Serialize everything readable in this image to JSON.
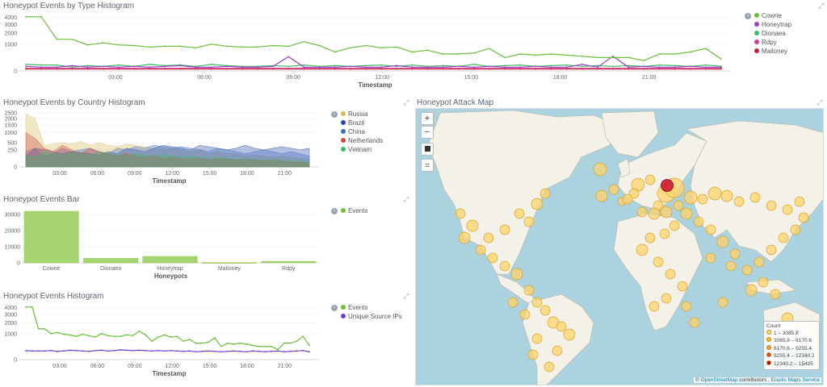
{
  "panels": {
    "type_hist": {
      "title": "Honeypot Events by Type Histogram",
      "xlabel": "Timestamp"
    },
    "country_hist": {
      "title": "Honeypot Events by Country Histogram",
      "xlabel": "Timestamp"
    },
    "bar": {
      "title": "Honeypot Events Bar",
      "xlabel": "Honeypots"
    },
    "events_hist": {
      "title": "Honeypot Events Histogram",
      "xlabel": "Timestamp"
    },
    "map": {
      "title": "Honeypot Attack Map"
    }
  },
  "icons": {
    "expand": "expand-icon",
    "toggle": "chevron-right-icon"
  },
  "chart_data": [
    {
      "id": "type_hist",
      "type": "line",
      "title": "Honeypot Events by Type Histogram",
      "xlabel": "Timestamp",
      "x_ticks": [
        "03:00",
        "06:00",
        "09:00",
        "12:00",
        "15:00",
        "18:00",
        "21:00"
      ],
      "y_ticks": [
        "0",
        "1000",
        "2000",
        "3000",
        "4000"
      ],
      "y_scale": "sqrt",
      "ylim": [
        0,
        4200
      ],
      "series": [
        {
          "name": "Cowrie",
          "color": "#6bbf3a",
          "values": [
            4100,
            4100,
            1400,
            1400,
            950,
            1100,
            950,
            900,
            800,
            850,
            850,
            750,
            1000,
            850,
            800,
            800,
            900,
            850,
            1200,
            900,
            500,
            750,
            900,
            750,
            800,
            500,
            600,
            400,
            400,
            450,
            700,
            250,
            400,
            350,
            400,
            350,
            300,
            250,
            250,
            250,
            150,
            400,
            400,
            500,
            700,
            200
          ]
        },
        {
          "name": "Honeytrap",
          "color": "#9b3fc7",
          "values": [
            30,
            20,
            20,
            40,
            20,
            30,
            20,
            30,
            20,
            30,
            40,
            20,
            20,
            30,
            20,
            20,
            30,
            280,
            20,
            20,
            20,
            30,
            20,
            20,
            40,
            20,
            20,
            20,
            30,
            20,
            30,
            20,
            20,
            30,
            20,
            20,
            60,
            20,
            300,
            20,
            30,
            20,
            20,
            30,
            20,
            20
          ]
        },
        {
          "name": "Dionaea",
          "color": "#3dbb64",
          "values": [
            60,
            50,
            50,
            20,
            40,
            30,
            50,
            30,
            60,
            40,
            50,
            30,
            60,
            40,
            30,
            30,
            40,
            30,
            50,
            30,
            40,
            30,
            40,
            50,
            30,
            50,
            30,
            40,
            30,
            60,
            30,
            40,
            50,
            30,
            40,
            50,
            30,
            40,
            30,
            40,
            30,
            50,
            40,
            30,
            50,
            30
          ]
        },
        {
          "name": "Rdpy",
          "color": "#d63c8e",
          "values": [
            10,
            10,
            10,
            10,
            10,
            10,
            10,
            10,
            10,
            10,
            10,
            10,
            10,
            10,
            10,
            10,
            10,
            10,
            10,
            10,
            10,
            10,
            10,
            10,
            10,
            10,
            10,
            10,
            10,
            10,
            10,
            10,
            10,
            10,
            10,
            10,
            10,
            10,
            10,
            10,
            10,
            10,
            10,
            10,
            10,
            10
          ]
        },
        {
          "name": "Mailoney",
          "color": "#c3223b",
          "values": [
            5,
            5,
            5,
            5,
            5,
            5,
            5,
            5,
            5,
            5,
            5,
            5,
            5,
            5,
            5,
            5,
            5,
            5,
            5,
            5,
            5,
            5,
            5,
            5,
            5,
            5,
            5,
            5,
            5,
            5,
            5,
            5,
            5,
            5,
            5,
            5,
            5,
            5,
            5,
            5,
            5,
            5,
            5,
            5,
            5,
            5
          ]
        }
      ],
      "legend": "right"
    },
    {
      "id": "country_hist",
      "type": "area",
      "title": "Honeypot Events by Country Histogram",
      "xlabel": "Timestamp",
      "x_ticks": [
        "03:00",
        "06:00",
        "09:00",
        "12:00",
        "15:00",
        "18:00",
        "21:00"
      ],
      "y_ticks": [
        "0",
        "250",
        "500",
        "1000",
        "1500",
        "2000",
        "2500"
      ],
      "y_scale": "sqrt",
      "ylim": [
        0,
        2500
      ],
      "series": [
        {
          "name": "Russia",
          "color": "#d6b95a",
          "values": [
            2400,
            2000,
            400,
            450,
            500,
            450,
            550,
            400,
            500,
            400,
            350,
            450,
            400,
            350,
            300,
            250,
            300,
            250,
            200,
            250,
            150,
            200,
            150,
            150,
            100,
            120,
            100,
            80,
            100,
            80,
            60,
            50
          ]
        },
        {
          "name": "Brazil",
          "color": "#2d4aa8",
          "values": [
            100,
            300,
            250,
            200,
            150,
            200,
            180,
            150,
            120,
            200,
            150,
            300,
            250,
            200,
            300,
            400,
            350,
            300,
            250,
            400,
            350,
            300,
            250,
            300,
            400,
            300,
            250,
            300,
            350,
            300,
            250,
            300
          ]
        },
        {
          "name": "China",
          "color": "#3d6fc1",
          "values": [
            200,
            300,
            100,
            150,
            300,
            200,
            250,
            300,
            200,
            150,
            300,
            250,
            350,
            300,
            400,
            350,
            300,
            350,
            300,
            250,
            200,
            300,
            250,
            200,
            150,
            200,
            250,
            200,
            150,
            200,
            150,
            100
          ]
        },
        {
          "name": "Netherlands",
          "color": "#d0473b",
          "values": [
            1000,
            700,
            300,
            200,
            400,
            250,
            150,
            300,
            200,
            150,
            100,
            150,
            100,
            80,
            100,
            60,
            80,
            60,
            50,
            60,
            40,
            60,
            50,
            40,
            50,
            40,
            30,
            40,
            30,
            20,
            20,
            10
          ]
        },
        {
          "name": "Vietnam",
          "color": "#3dbb64",
          "values": [
            100,
            80,
            200,
            150,
            120,
            180,
            150,
            120,
            200,
            150,
            120,
            100,
            150,
            120,
            100,
            120,
            100,
            80,
            100,
            80,
            60,
            80,
            60,
            50,
            60,
            50,
            40,
            50,
            40,
            30,
            30,
            20
          ]
        }
      ],
      "legend": "right"
    },
    {
      "id": "bar",
      "type": "bar",
      "title": "Honeypot Events Bar",
      "xlabel": "Honeypots",
      "categories": [
        "Cowrie",
        "Dionaea",
        "Honeytrap",
        "Mailoney",
        "Rdpy"
      ],
      "values": [
        32000,
        2800,
        4000,
        200,
        900
      ],
      "y_ticks": [
        "0",
        "10000",
        "20000",
        "30000"
      ],
      "ylim": [
        0,
        34000
      ],
      "series_name": "Events",
      "color": "#a6d470",
      "legend": "right"
    },
    {
      "id": "events_hist",
      "type": "line",
      "title": "Honeypot Events Histogram",
      "xlabel": "Timestamp",
      "x_ticks": [
        "03:00",
        "06:00",
        "09:00",
        "12:00",
        "15:00",
        "18:00",
        "21:00"
      ],
      "y_ticks": [
        "0",
        "1000",
        "2000",
        "3000",
        "4000"
      ],
      "y_scale": "sqrt",
      "ylim": [
        0,
        4200
      ],
      "series": [
        {
          "name": "Events",
          "color": "#6bbf3a",
          "values": [
            4100,
            4100,
            1400,
            1400,
            1000,
            1100,
            950,
            900,
            800,
            950,
            850,
            750,
            1000,
            850,
            800,
            800,
            900,
            850,
            1200,
            900,
            500,
            750,
            900,
            750,
            800,
            500,
            600,
            400,
            400,
            450,
            700,
            250,
            400,
            350,
            400,
            350,
            300,
            250,
            250,
            250,
            150,
            400,
            400,
            500,
            800,
            300
          ]
        },
        {
          "name": "Unique Source IPs",
          "color": "#6f3fcf",
          "values": [
            120,
            110,
            110,
            110,
            120,
            100,
            110,
            130,
            120,
            110,
            100,
            120,
            130,
            110,
            120,
            140,
            130,
            120,
            130,
            120,
            110,
            120,
            110,
            120,
            110,
            100,
            110,
            90,
            100,
            110,
            100,
            90,
            100,
            110,
            100,
            90,
            110,
            100,
            90,
            100,
            110,
            90,
            100,
            110,
            120,
            90
          ]
        }
      ],
      "legend": "right"
    },
    {
      "id": "attack_map",
      "type": "scatter",
      "title": "Honeypot Attack Map",
      "legend_title": "Count",
      "legend": [
        {
          "label": "1 – 3085.8",
          "color": "#ffe083"
        },
        {
          "label": "3085.8 – 6170.6",
          "color": "#fdbb46"
        },
        {
          "label": "6170.6 – 9255.4",
          "color": "#f79537"
        },
        {
          "label": "9255.4 – 12340.2",
          "color": "#e8412e"
        },
        {
          "label": "12340.2 – 15425",
          "color": "#b8001f"
        }
      ]
    }
  ],
  "map": {
    "zoom_in": "+",
    "zoom_out": "−",
    "attribution_symbol": "©",
    "attribution_osm": "OpenStreetMap",
    "attribution_mid": " contributors , ",
    "attribution_elastic": "Elastic Maps Service"
  }
}
